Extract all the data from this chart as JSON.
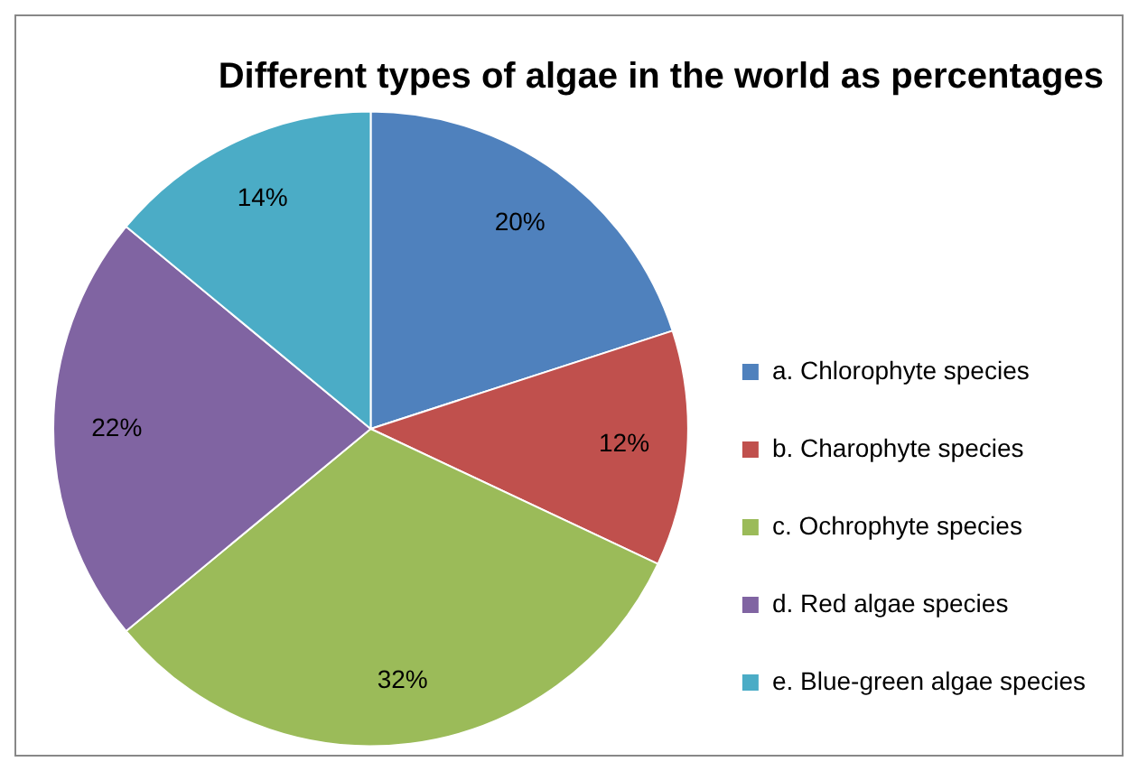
{
  "chart_data": {
    "type": "pie",
    "title": "Different types of algae in the world as percentages",
    "categories": [
      "a. Chlorophyte species",
      "b. Charophyte species",
      "c. Ochrophyte species",
      "d. Red algae species",
      "e. Blue-green algae species"
    ],
    "values": [
      20,
      12,
      32,
      22,
      14
    ],
    "colors": [
      "#4f81bd",
      "#c0504d",
      "#9bbb59",
      "#8064a2",
      "#4bacc6"
    ],
    "value_labels": [
      "20%",
      "12%",
      "32%",
      "22%",
      "14%"
    ],
    "legend": "right"
  }
}
